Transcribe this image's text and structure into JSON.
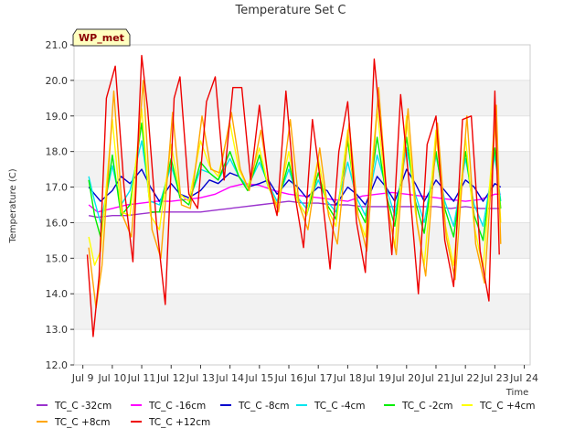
{
  "chart_data": {
    "type": "line",
    "title": "Temperature Set C",
    "xlabel": "Time",
    "ylabel": "Temperature (C)",
    "annotation": "WP_met",
    "xlim": [
      8.7,
      24.2
    ],
    "ylim": [
      12.0,
      21.0
    ],
    "grid": "alternating horizontal bands",
    "legend_position": "bottom",
    "x_ticks": [
      {
        "value": 9,
        "label": "Jul 9"
      },
      {
        "value": 10,
        "label": "Jul 10"
      },
      {
        "value": 11,
        "label": "Jul 11"
      },
      {
        "value": 12,
        "label": "Jul 12"
      },
      {
        "value": 13,
        "label": "Jul 13"
      },
      {
        "value": 14,
        "label": "Jul 14"
      },
      {
        "value": 15,
        "label": "Jul 15"
      },
      {
        "value": 16,
        "label": "Jul 16"
      },
      {
        "value": 17,
        "label": "Jul 17"
      },
      {
        "value": 18,
        "label": "Jul 18"
      },
      {
        "value": 19,
        "label": "Jul 19"
      },
      {
        "value": 20,
        "label": "Jul 20"
      },
      {
        "value": 21,
        "label": "Jul 21"
      },
      {
        "value": 22,
        "label": "Jul 22"
      },
      {
        "value": 23,
        "label": "Jul 23"
      },
      {
        "value": 24,
        "label": "Jul 24"
      }
    ],
    "y_ticks": [
      {
        "value": 12,
        "label": "12.0"
      },
      {
        "value": 13,
        "label": "13.0"
      },
      {
        "value": 14,
        "label": "14.0"
      },
      {
        "value": 15,
        "label": "15.0"
      },
      {
        "value": 16,
        "label": "16.0"
      },
      {
        "value": 17,
        "label": "17.0"
      },
      {
        "value": 18,
        "label": "18.0"
      },
      {
        "value": 19,
        "label": "19.0"
      },
      {
        "value": 20,
        "label": "20.0"
      },
      {
        "value": 21,
        "label": "21.0"
      }
    ],
    "series": [
      {
        "name": "TC_C -32cm",
        "color": "#9a32cd",
        "x": [
          9.2,
          9.5,
          10,
          10.5,
          11,
          11.5,
          12,
          12.5,
          13,
          13.5,
          14,
          14.5,
          15,
          15.5,
          16,
          16.5,
          17,
          17.5,
          18,
          18.5,
          19,
          19.5,
          20,
          20.5,
          21,
          21.5,
          22,
          22.5,
          23,
          23.2
        ],
        "y": [
          16.2,
          16.15,
          16.2,
          16.2,
          16.25,
          16.3,
          16.3,
          16.3,
          16.3,
          16.35,
          16.4,
          16.45,
          16.5,
          16.55,
          16.6,
          16.55,
          16.55,
          16.5,
          16.5,
          16.45,
          16.45,
          16.45,
          16.45,
          16.45,
          16.45,
          16.4,
          16.45,
          16.4,
          16.4,
          16.4
        ]
      },
      {
        "name": "TC_C -16cm",
        "color": "#ff00ff",
        "x": [
          9.2,
          9.5,
          10,
          10.5,
          11,
          11.5,
          12,
          12.5,
          13,
          13.5,
          14,
          14.5,
          15,
          15.5,
          16,
          16.5,
          17,
          17.5,
          18,
          18.5,
          19,
          19.5,
          20,
          20.5,
          21,
          21.5,
          22,
          22.5,
          23,
          23.2
        ],
        "y": [
          16.5,
          16.3,
          16.4,
          16.5,
          16.55,
          16.6,
          16.6,
          16.65,
          16.7,
          16.8,
          17.0,
          17.1,
          17.05,
          16.9,
          16.8,
          16.75,
          16.7,
          16.65,
          16.6,
          16.75,
          16.8,
          16.85,
          16.8,
          16.75,
          16.7,
          16.65,
          16.6,
          16.65,
          16.8,
          16.8
        ]
      },
      {
        "name": "TC_C -8cm",
        "color": "#0000cd",
        "x": [
          9.2,
          9.6,
          10.0,
          10.3,
          10.6,
          11.0,
          11.3,
          11.6,
          12.0,
          12.3,
          12.6,
          13.0,
          13.3,
          13.6,
          14.0,
          14.3,
          14.6,
          15.0,
          15.3,
          15.6,
          16.0,
          16.3,
          16.6,
          17.0,
          17.3,
          17.6,
          18.0,
          18.3,
          18.6,
          19.0,
          19.3,
          19.6,
          20.0,
          20.3,
          20.6,
          21.0,
          21.3,
          21.6,
          22.0,
          22.3,
          22.6,
          23.0,
          23.2
        ],
        "y": [
          17.0,
          16.6,
          16.9,
          17.3,
          17.1,
          17.5,
          17.0,
          16.6,
          17.1,
          16.8,
          16.7,
          16.9,
          17.2,
          17.1,
          17.4,
          17.3,
          17.0,
          17.1,
          17.2,
          16.8,
          17.2,
          17.0,
          16.7,
          17.0,
          16.9,
          16.5,
          17.0,
          16.8,
          16.5,
          17.3,
          17.0,
          16.6,
          17.5,
          17.1,
          16.6,
          17.2,
          16.9,
          16.6,
          17.2,
          17.0,
          16.6,
          17.1,
          17.0
        ]
      },
      {
        "name": "TC_C -4cm",
        "color": "#00e5ee",
        "x": [
          9.2,
          9.4,
          9.6,
          10.0,
          10.3,
          10.6,
          11.0,
          11.3,
          11.6,
          12.0,
          12.3,
          12.6,
          13.0,
          13.3,
          13.6,
          14.0,
          14.3,
          14.6,
          15.0,
          15.3,
          15.6,
          16.0,
          16.3,
          16.6,
          17.0,
          17.3,
          17.6,
          18.0,
          18.3,
          18.6,
          19.0,
          19.3,
          19.6,
          20.0,
          20.3,
          20.6,
          21.0,
          21.3,
          21.6,
          22.0,
          22.3,
          22.6,
          23.0,
          23.2
        ],
        "y": [
          17.3,
          16.6,
          16.0,
          17.6,
          16.5,
          16.9,
          18.3,
          16.6,
          16.5,
          17.6,
          16.8,
          16.6,
          17.5,
          17.4,
          17.2,
          17.8,
          17.3,
          17.0,
          17.7,
          17.1,
          16.6,
          17.5,
          16.7,
          16.4,
          17.2,
          16.6,
          16.3,
          17.7,
          16.7,
          16.2,
          17.9,
          17.0,
          16.2,
          18.1,
          16.8,
          16.0,
          17.9,
          16.6,
          15.9,
          17.8,
          16.5,
          15.9,
          17.9,
          16.6
        ]
      },
      {
        "name": "TC_C -2cm",
        "color": "#00ee00",
        "x": [
          9.2,
          9.4,
          9.6,
          10.0,
          10.3,
          10.6,
          11.0,
          11.3,
          11.6,
          12.0,
          12.3,
          12.6,
          13.0,
          13.3,
          13.6,
          14.0,
          14.3,
          14.6,
          15.0,
          15.3,
          15.6,
          16.0,
          16.3,
          16.6,
          17.0,
          17.3,
          17.6,
          18.0,
          18.3,
          18.6,
          19.0,
          19.3,
          19.6,
          20.0,
          20.3,
          20.6,
          21.0,
          21.3,
          21.6,
          22.0,
          22.3,
          22.6,
          23.0,
          23.2
        ],
        "y": [
          17.2,
          16.2,
          15.6,
          17.9,
          16.2,
          16.5,
          18.8,
          16.3,
          16.3,
          17.8,
          16.7,
          16.5,
          17.7,
          17.4,
          17.2,
          18.0,
          17.3,
          16.9,
          17.9,
          17.0,
          16.5,
          17.7,
          16.6,
          16.2,
          17.4,
          16.5,
          16.1,
          18.3,
          16.5,
          16.0,
          18.4,
          16.8,
          15.9,
          18.4,
          16.6,
          15.7,
          18.0,
          16.4,
          15.6,
          18.0,
          16.2,
          15.5,
          18.1,
          16.4
        ]
      },
      {
        "name": "TC_C +4cm",
        "color": "#ffff00",
        "x": [
          9.2,
          9.4,
          9.6,
          10.0,
          10.3,
          10.6,
          11.0,
          11.3,
          11.6,
          12.0,
          12.3,
          12.6,
          13.0,
          13.3,
          13.6,
          14.0,
          14.3,
          14.6,
          15.0,
          15.3,
          15.6,
          16.0,
          16.3,
          16.6,
          17.0,
          17.3,
          17.6,
          18.0,
          18.3,
          18.6,
          19.0,
          19.3,
          19.6,
          20.0,
          20.3,
          20.6,
          21.0,
          21.3,
          21.6,
          22.0,
          22.3,
          22.6,
          23.0,
          23.2
        ],
        "y": [
          15.6,
          14.8,
          15.2,
          18.9,
          16.3,
          16.2,
          19.2,
          16.2,
          15.8,
          18.2,
          16.8,
          16.6,
          18.3,
          17.6,
          17.3,
          18.8,
          17.5,
          17.0,
          18.1,
          17.0,
          16.5,
          18.0,
          16.6,
          16.2,
          17.8,
          16.4,
          15.9,
          18.6,
          16.3,
          15.6,
          19.2,
          16.8,
          15.3,
          19.0,
          16.3,
          14.8,
          18.6,
          16.0,
          14.8,
          18.4,
          15.9,
          14.7,
          18.9,
          16.0
        ]
      },
      {
        "name": "TC_C +8cm",
        "color": "#ffa500",
        "x": [
          9.2,
          9.45,
          9.65,
          10.05,
          10.35,
          10.65,
          11.05,
          11.35,
          11.65,
          12.05,
          12.35,
          12.65,
          13.05,
          13.35,
          13.65,
          14.05,
          14.35,
          14.65,
          15.05,
          15.35,
          15.65,
          16.05,
          16.35,
          16.65,
          17.05,
          17.35,
          17.65,
          18.05,
          18.35,
          18.65,
          19.05,
          19.35,
          19.65,
          20.05,
          20.35,
          20.65,
          21.05,
          21.35,
          21.65,
          22.05,
          22.35,
          22.65,
          23.05,
          23.2
        ],
        "y": [
          15.3,
          13.6,
          14.8,
          19.7,
          16.2,
          15.6,
          20.0,
          15.8,
          15.0,
          19.1,
          16.5,
          16.4,
          19.0,
          17.5,
          17.4,
          19.1,
          17.5,
          16.9,
          18.6,
          17.0,
          16.3,
          18.9,
          16.5,
          15.8,
          18.1,
          16.2,
          15.4,
          18.8,
          16.2,
          15.2,
          19.8,
          16.5,
          15.1,
          19.2,
          16.0,
          14.5,
          18.8,
          15.6,
          14.4,
          19.0,
          15.4,
          14.3,
          19.3,
          15.4
        ]
      },
      {
        "name": "TC_C +12cm",
        "color": "#ee0000",
        "x": [
          9.15,
          9.35,
          9.55,
          9.8,
          10.1,
          10.4,
          10.7,
          11.0,
          11.2,
          11.5,
          11.8,
          12.1,
          12.3,
          12.6,
          12.9,
          13.2,
          13.5,
          13.8,
          14.1,
          14.4,
          14.7,
          15.0,
          15.3,
          15.6,
          15.9,
          16.2,
          16.5,
          16.8,
          17.1,
          17.4,
          17.7,
          18.0,
          18.3,
          18.6,
          18.9,
          19.2,
          19.5,
          19.8,
          20.1,
          20.4,
          20.7,
          21.0,
          21.3,
          21.6,
          21.9,
          22.2,
          22.5,
          22.8,
          23.0,
          23.15
        ],
        "y": [
          15.1,
          12.8,
          14.5,
          19.5,
          20.4,
          17.0,
          14.9,
          20.7,
          19.2,
          16.0,
          13.7,
          19.5,
          20.1,
          16.8,
          16.4,
          19.4,
          20.1,
          17.2,
          19.8,
          19.8,
          17.2,
          19.3,
          17.2,
          16.2,
          19.7,
          16.8,
          15.3,
          18.9,
          17.0,
          14.7,
          18.0,
          19.4,
          16.0,
          14.6,
          20.6,
          18.0,
          15.1,
          19.6,
          17.0,
          14.0,
          18.2,
          19.0,
          15.5,
          14.2,
          18.9,
          19.0,
          15.2,
          13.8,
          19.7,
          15.1
        ]
      }
    ]
  }
}
